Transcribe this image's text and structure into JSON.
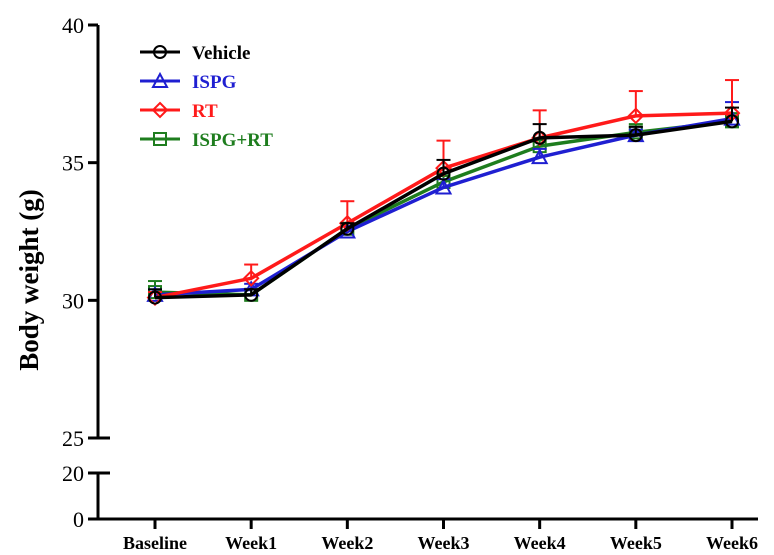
{
  "chart_data": {
    "type": "line",
    "ylabel": "Body weight (g)",
    "xlabel": "",
    "categories": [
      "Baseline",
      "Week1",
      "Week2",
      "Week3",
      "Week4",
      "Week5",
      "Week6"
    ],
    "y_segments": [
      {
        "range": [
          0,
          20
        ],
        "ticks": [
          0,
          20
        ]
      },
      {
        "range": [
          25,
          40
        ],
        "ticks": [
          25,
          30,
          35,
          40
        ]
      }
    ],
    "legend_position": "top-left",
    "series": [
      {
        "name": "Vehicle",
        "color": "#000000",
        "marker": "circle",
        "values": [
          30.1,
          30.2,
          32.6,
          34.6,
          35.9,
          36.0,
          36.5
        ],
        "errors": [
          0.3,
          0.2,
          0.2,
          0.5,
          0.5,
          0.3,
          0.5
        ]
      },
      {
        "name": "ISPG",
        "color": "#1f1fd1",
        "marker": "triangle",
        "values": [
          30.2,
          30.4,
          32.5,
          34.1,
          35.2,
          36.0,
          36.6
        ],
        "errors": [
          0.2,
          0.2,
          0.2,
          0.3,
          0.3,
          0.2,
          0.6
        ]
      },
      {
        "name": "RT",
        "color": "#ff1a1a",
        "marker": "diamond",
        "values": [
          30.1,
          30.8,
          32.8,
          34.8,
          35.9,
          36.7,
          36.8
        ],
        "errors": [
          0.2,
          0.5,
          0.8,
          1.0,
          1.0,
          0.9,
          1.2
        ]
      },
      {
        "name": "ISPG+RT",
        "color": "#1e7d1e",
        "marker": "square",
        "values": [
          30.3,
          30.2,
          32.6,
          34.3,
          35.6,
          36.1,
          36.5
        ],
        "errors": [
          0.4,
          0.2,
          0.2,
          0.3,
          0.3,
          0.3,
          0.3
        ]
      }
    ]
  }
}
